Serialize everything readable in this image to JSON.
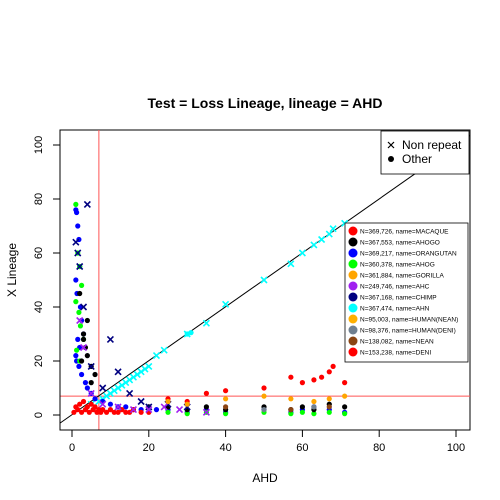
{
  "chart_data": {
    "type": "scatter",
    "title": "Test = Loss Lineage, lineage = AHD",
    "xlabel": "AHD",
    "ylabel": "X Lineage",
    "xlim": [
      0,
      100
    ],
    "ylim": [
      0,
      100
    ],
    "x_ticks": [
      "0",
      "20",
      "40",
      "60",
      "80",
      "100"
    ],
    "y_ticks": [
      "0",
      "20",
      "40",
      "60",
      "80",
      "100"
    ],
    "grid": false,
    "reference_lines": {
      "identity": "y = x",
      "vertical_x": 7,
      "horizontal_y": 7,
      "reference_color": "#ff5555"
    },
    "marker_legend": {
      "placement": "top-right",
      "items": [
        {
          "symbol": "cross",
          "label": "Non repeat"
        },
        {
          "symbol": "dot",
          "label": "Other"
        }
      ]
    },
    "series_legend": {
      "placement": "right",
      "entries": [
        {
          "label": "N=369,726, name=MACAQUE",
          "color": "#ff0000"
        },
        {
          "label": "N=367,553, name=AHOGO",
          "color": "#000000"
        },
        {
          "label": "N=369,217, name=ORANGUTAN",
          "color": "#0000ff"
        },
        {
          "label": "N=360,378, name=AHOG",
          "color": "#00ff00"
        },
        {
          "label": "N=361,884, name=GORILLA",
          "color": "#ffa500"
        },
        {
          "label": "N=249,746, name=AHC",
          "color": "#a020f0"
        },
        {
          "label": "N=367,168, name=CHIMP",
          "color": "#000080"
        },
        {
          "label": "N=367,474, name=AHN",
          "color": "#00ffff"
        },
        {
          "label": "N=95,003, name=HUMAN(NEAN)",
          "color": "#ffb000"
        },
        {
          "label": "N=98,376, name=HUMAN(DENI)",
          "color": "#708090"
        },
        {
          "label": "N=138,082, name=NEAN",
          "color": "#8b4513"
        },
        {
          "label": "N=153,238, name=DENI",
          "color": "#ff0000"
        }
      ]
    },
    "series": [
      {
        "name": "N=367,474, name=AHN",
        "color": "#00ffff",
        "marker": "cross",
        "x": [
          5,
          7,
          8,
          9,
          10,
          11,
          12,
          13,
          14,
          15,
          16,
          17,
          18,
          19,
          20,
          22,
          24,
          30,
          35,
          40,
          50,
          57,
          60,
          63,
          65,
          67,
          68,
          71
        ],
        "y": [
          4,
          5,
          6,
          7,
          8,
          9,
          10,
          11,
          12,
          13,
          14,
          15,
          16,
          17,
          18,
          22,
          24,
          30,
          34,
          41,
          50,
          56,
          60,
          63,
          65,
          67,
          69,
          71
        ]
      },
      {
        "name": "N=367,474, name=AHN",
        "color": "#00ffff",
        "marker": "dot",
        "x": [
          30,
          31
        ],
        "y": [
          30,
          30.5
        ]
      },
      {
        "name": "N=369,217, name=ORANGUTAN",
        "color": "#0000ff",
        "marker": "dot",
        "x": [
          1,
          1.2,
          1.5,
          1.8,
          2,
          1,
          1.3,
          2.2,
          2.5,
          3,
          1.5,
          2,
          1,
          1.2,
          1.8,
          2.5,
          3.5,
          4,
          5,
          6,
          8,
          10,
          12,
          14,
          16,
          18,
          20,
          22,
          25,
          30,
          35,
          40,
          50,
          57,
          60,
          63,
          67,
          71
        ],
        "y": [
          76,
          75,
          70,
          65,
          55,
          50,
          45,
          40,
          35,
          30,
          28,
          25,
          22,
          20,
          18,
          15,
          12,
          10,
          8,
          6,
          5,
          4,
          3,
          3,
          2,
          2,
          3,
          2,
          2,
          1,
          2,
          1,
          2,
          1,
          2,
          3,
          2,
          1
        ]
      },
      {
        "name": "N=360,378, name=AHOG",
        "color": "#00ff00",
        "marker": "dot",
        "x": [
          1,
          1.5,
          2,
          2.5,
          1,
          1.8,
          2.2,
          3,
          1.2,
          2,
          25,
          30,
          35,
          40,
          50,
          57,
          60,
          63,
          67,
          71
        ],
        "y": [
          78,
          60,
          55,
          48,
          42,
          38,
          33,
          28,
          24,
          20,
          1,
          0.5,
          1,
          0.5,
          1,
          0.5,
          1,
          0.5,
          1,
          0.5
        ]
      },
      {
        "name": "N=367,553, name=AHOGO",
        "color": "#000000",
        "marker": "dot",
        "x": [
          2,
          3,
          3.5,
          4,
          5,
          6,
          2.5,
          3,
          4,
          5,
          20,
          25,
          30,
          35,
          40,
          50,
          57,
          60,
          63,
          67,
          71
        ],
        "y": [
          45,
          30,
          25,
          22,
          18,
          15,
          20,
          28,
          35,
          12,
          3,
          3,
          2,
          3,
          2,
          3,
          2,
          3,
          2,
          4,
          3
        ]
      },
      {
        "name": "N=367,168, name=CHIMP",
        "color": "#000080",
        "marker": "cross",
        "x": [
          1,
          1.5,
          2,
          3,
          4,
          5,
          8,
          10,
          12,
          15,
          18,
          20,
          25,
          30
        ],
        "y": [
          64,
          60,
          55,
          40,
          78,
          18,
          10,
          28,
          16,
          8,
          5,
          3,
          4,
          3
        ]
      },
      {
        "name": "N=369,726, name=MACAQUE",
        "color": "#ff0000",
        "marker": "dot",
        "x": [
          0.5,
          1,
          1.5,
          2,
          2.5,
          3,
          3.5,
          4,
          4.5,
          5,
          5.5,
          6,
          6.5,
          7,
          7.5,
          8,
          9,
          10,
          11,
          12,
          13,
          14,
          15,
          16,
          18,
          20,
          25,
          30,
          35,
          40,
          50,
          57,
          60,
          63,
          65,
          67,
          68,
          71
        ],
        "y": [
          1,
          3,
          2,
          4,
          1,
          5,
          2,
          3,
          1,
          4,
          2,
          3,
          1,
          2,
          1,
          2,
          1,
          2,
          1,
          1,
          2,
          1,
          1,
          2,
          1,
          1,
          6,
          5,
          8,
          9,
          10,
          14,
          12,
          13,
          14,
          16,
          18,
          12
        ]
      },
      {
        "name": "N=361,884, name=GORILLA",
        "color": "#ffa500",
        "marker": "dot",
        "x": [
          25,
          30,
          40,
          50,
          57,
          63,
          67,
          71
        ],
        "y": [
          5,
          4,
          6,
          7,
          6,
          5,
          6,
          7
        ]
      },
      {
        "name": "N=249,746, name=AHC",
        "color": "#a020f0",
        "marker": "cross",
        "x": [
          2,
          3,
          5,
          8,
          12,
          16,
          20,
          24,
          28,
          35
        ],
        "y": [
          35,
          25,
          8,
          4,
          3,
          2,
          2,
          3,
          2,
          1
        ]
      },
      {
        "name": "N=138,082, name=NEAN",
        "color": "#8b4513",
        "marker": "dot",
        "x": [
          40,
          57,
          67
        ],
        "y": [
          3,
          2,
          3
        ]
      },
      {
        "name": "N=98,376, name=HUMAN(DENI)",
        "color": "#708090",
        "marker": "dot",
        "x": [
          50,
          63
        ],
        "y": [
          2,
          3
        ]
      }
    ]
  }
}
